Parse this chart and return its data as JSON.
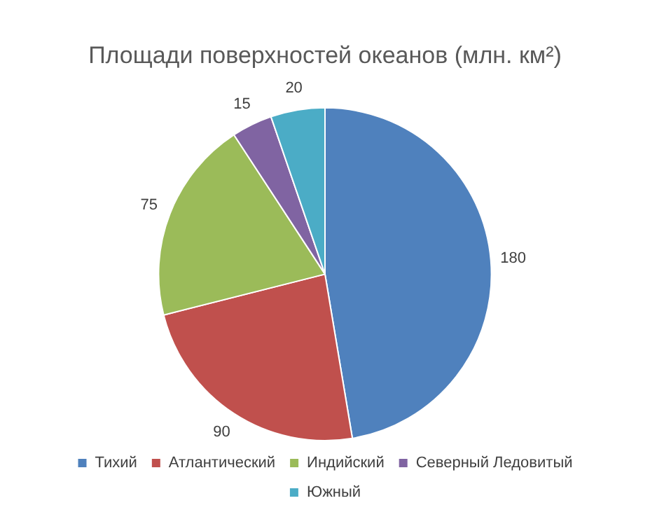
{
  "chart_data": {
    "type": "pie",
    "title": "Площади поверхностей океанов (млн. км²)",
    "categories": [
      "Тихий",
      "Атлантический",
      "Индийский",
      "Северный Ледовитый",
      "Южный"
    ],
    "values": [
      180,
      90,
      75,
      15,
      20
    ],
    "colors": [
      "#4f81bd",
      "#c0504d",
      "#9bbb59",
      "#8064a2",
      "#4bacc6"
    ],
    "data_labels": true,
    "legend": "bottom"
  }
}
